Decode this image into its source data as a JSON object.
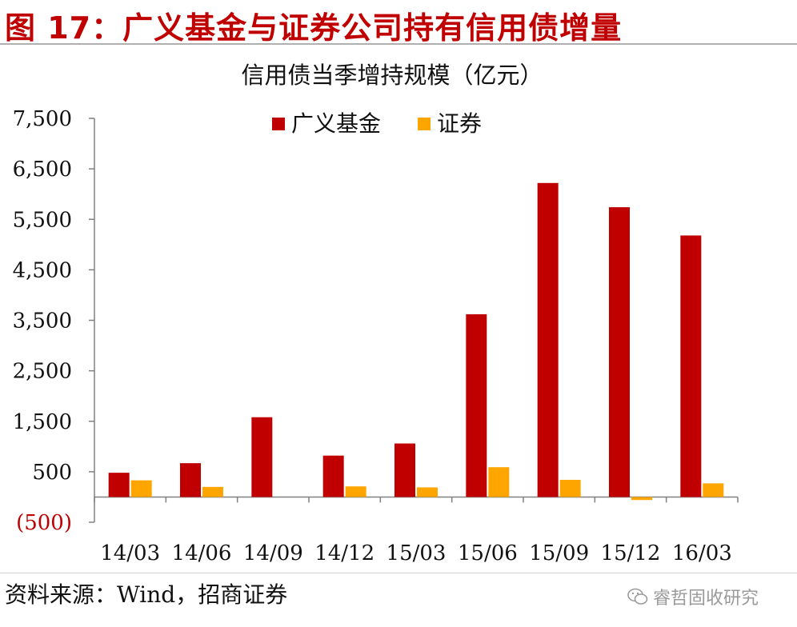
{
  "header": {
    "figure_title": "图 17：广义基金与证券公司持有信用债增量"
  },
  "footer": {
    "source": "资料来源：Wind，招商证券",
    "watermark": "睿哲固收研究"
  },
  "colors": {
    "title": "#c00000",
    "fund": "#c00000",
    "securities": "#ffa500",
    "negative_label": "#c00000"
  },
  "chart_data": {
    "type": "bar",
    "title": "信用债当季增持规模（亿元）",
    "categories": [
      "14/03",
      "14/06",
      "14/09",
      "14/12",
      "15/03",
      "15/06",
      "15/09",
      "15/12",
      "16/03"
    ],
    "series": [
      {
        "name": "广义基金",
        "values": [
          480,
          670,
          1580,
          820,
          1060,
          3620,
          6220,
          5740,
          5180
        ]
      },
      {
        "name": "证券",
        "values": [
          330,
          200,
          0,
          210,
          190,
          590,
          340,
          -60,
          270
        ]
      }
    ],
    "ylim": [
      -500,
      7500
    ],
    "yticks": [
      7500,
      6500,
      5500,
      4500,
      3500,
      2500,
      1500,
      500,
      -500
    ],
    "ytick_labels": [
      "7,500",
      "6,500",
      "5,500",
      "4,500",
      "3,500",
      "2,500",
      "1,500",
      "500",
      "(500)"
    ],
    "legend_position": "top",
    "grid": false
  }
}
